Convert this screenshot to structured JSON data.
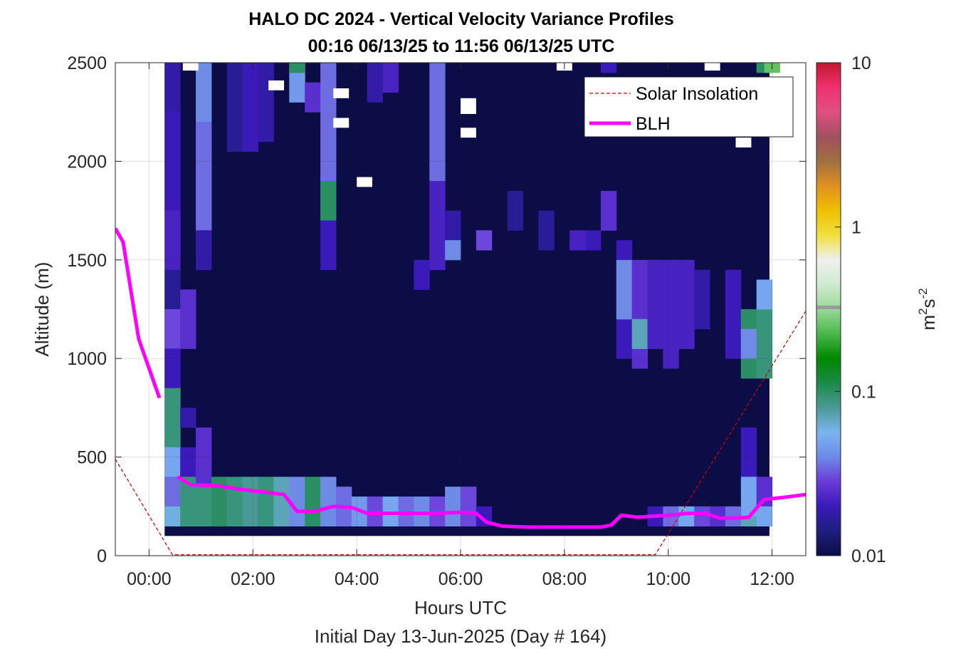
{
  "chart_data": {
    "type": "heatmap",
    "title": "HALO DC 2024 - Vertical Velocity Variance Profiles",
    "subtitle": "00:16 06/13/25 to 11:56 06/13/25  UTC",
    "xlabel": "Hours UTC",
    "xlabel2": "Initial Day 13-Jun-2025 (Day # 164)",
    "ylabel": "Altitude (m)",
    "x_range_hours": [
      -0.65,
      12.65
    ],
    "y_range_m": [
      0,
      2500
    ],
    "x_ticks": [
      "00:00",
      "02:00",
      "04:00",
      "06:00",
      "08:00",
      "10:00",
      "12:00"
    ],
    "x_tick_values_hours": [
      0,
      2,
      4,
      6,
      8,
      10,
      12
    ],
    "y_ticks": [
      "0",
      "500",
      "1000",
      "1500",
      "2000",
      "2500"
    ],
    "y_tick_values": [
      0,
      500,
      1000,
      1500,
      2000,
      2500
    ],
    "grid": true,
    "colorbar": {
      "label": "m²s⁻²",
      "label_base": "m",
      "label_sup1": "2",
      "label_mid": "s",
      "label_sup2": "-2",
      "scale": "log",
      "range": [
        0.01,
        10
      ],
      "ticks": [
        "10",
        "1",
        "0.1",
        "0.01"
      ],
      "tick_values": [
        10,
        1,
        0.1,
        0.01
      ],
      "colors": [
        "#0c0c46",
        "#1e1e80",
        "#3a1ab8",
        "#6a3ad8",
        "#6e8ae6",
        "#7ab4f0",
        "#4a9a98",
        "#1a8a4a",
        "#008800",
        "#4ab84a",
        "#9ad89a",
        "#d0ead0",
        "#f0f0f0",
        "#f0e040",
        "#f0c000",
        "#e09020",
        "#a07040",
        "#a05060",
        "#e05080",
        "#f03070",
        "#c01830"
      ]
    },
    "legend": {
      "placement": "top-right",
      "entries": [
        {
          "name": "Solar Insolation",
          "color": "#cc0000",
          "style": "dashed"
        },
        {
          "name": "BLH",
          "color": "#ff00ff",
          "style": "solid"
        }
      ]
    },
    "heatmap_extent": {
      "x_hours": [
        0.3,
        11.95
      ],
      "y_m": [
        100,
        2500
      ]
    },
    "heatmap_background_value": 0.01,
    "blh_series": {
      "name": "BLH",
      "segment1": {
        "x_hours": [
          -0.65,
          -0.5,
          -0.2,
          0.2
        ],
        "y_m": [
          1660,
          1590,
          1100,
          800
        ]
      },
      "segment2": {
        "x_hours": [
          0.55,
          0.8,
          1.3,
          1.8,
          2.3,
          2.6,
          2.85,
          3.2,
          3.55,
          3.9,
          4.2,
          4.6,
          5.0,
          5.5,
          6.0,
          6.3,
          6.5,
          6.8,
          7.3,
          7.8,
          8.3,
          8.7,
          8.9,
          9.1,
          9.4,
          9.7,
          10.0,
          10.4,
          10.7,
          11.0,
          11.3,
          11.55,
          11.85,
          12.2,
          12.65
        ],
        "y_m": [
          400,
          360,
          355,
          335,
          320,
          310,
          225,
          225,
          250,
          245,
          215,
          215,
          215,
          215,
          220,
          215,
          170,
          150,
          145,
          145,
          145,
          145,
          155,
          205,
          195,
          200,
          205,
          215,
          215,
          190,
          190,
          195,
          285,
          295,
          310
        ]
      }
    },
    "solar_insolation_series": {
      "name": "Solar Insolation",
      "x_hours": [
        -0.65,
        0.45,
        9.75,
        12.65
      ],
      "y_m": [
        490,
        5,
        5,
        1240
      ]
    },
    "cells": [
      {
        "x": 0.3,
        "y": 2250,
        "h": 250,
        "v": 0.018
      },
      {
        "x": 0.3,
        "y": 1750,
        "h": 500,
        "v": 0.02
      },
      {
        "x": 0.3,
        "y": 1450,
        "h": 300,
        "v": 0.022
      },
      {
        "x": 0.3,
        "y": 1250,
        "h": 200,
        "v": 0.016
      },
      {
        "x": 0.3,
        "y": 1050,
        "h": 200,
        "v": 0.03
      },
      {
        "x": 0.3,
        "y": 850,
        "h": 200,
        "v": 0.02
      },
      {
        "x": 0.3,
        "y": 550,
        "h": 300,
        "v": 0.09
      },
      {
        "x": 0.3,
        "y": 400,
        "h": 150,
        "v": 0.05
      },
      {
        "x": 0.3,
        "y": 250,
        "h": 150,
        "v": 0.035
      },
      {
        "x": 0.3,
        "y": 150,
        "h": 100,
        "v": 0.06
      },
      {
        "x": 0.6,
        "y": 1050,
        "h": 300,
        "v": 0.025
      },
      {
        "x": 0.6,
        "y": 650,
        "h": 100,
        "v": 0.018
      },
      {
        "x": 0.6,
        "y": 400,
        "h": 150,
        "v": 0.02
      },
      {
        "x": 0.6,
        "y": 150,
        "h": 250,
        "v": 0.09
      },
      {
        "x": 0.9,
        "y": 2200,
        "h": 300,
        "v": 0.04
      },
      {
        "x": 0.9,
        "y": 1650,
        "h": 550,
        "v": 0.035
      },
      {
        "x": 0.9,
        "y": 1450,
        "h": 200,
        "v": 0.018
      },
      {
        "x": 0.9,
        "y": 350,
        "h": 300,
        "v": 0.025
      },
      {
        "x": 0.9,
        "y": 150,
        "h": 200,
        "v": 0.09
      },
      {
        "x": 1.2,
        "y": 150,
        "h": 250,
        "v": 0.1
      },
      {
        "x": 1.5,
        "y": 150,
        "h": 250,
        "v": 0.09
      },
      {
        "x": 1.8,
        "y": 150,
        "h": 250,
        "v": 0.08
      },
      {
        "x": 2.1,
        "y": 150,
        "h": 250,
        "v": 0.09
      },
      {
        "x": 2.4,
        "y": 150,
        "h": 250,
        "v": 0.07
      },
      {
        "x": 2.7,
        "y": 150,
        "h": 250,
        "v": 0.04
      },
      {
        "x": 3.0,
        "y": 150,
        "h": 250,
        "v": 0.1
      },
      {
        "x": 3.3,
        "y": 150,
        "h": 250,
        "v": 0.04
      },
      {
        "x": 3.6,
        "y": 150,
        "h": 200,
        "v": 0.035
      },
      {
        "x": 3.9,
        "y": 150,
        "h": 150,
        "v": 0.045
      },
      {
        "x": 4.2,
        "y": 150,
        "h": 150,
        "v": 0.03
      },
      {
        "x": 4.5,
        "y": 150,
        "h": 150,
        "v": 0.05
      },
      {
        "x": 4.8,
        "y": 150,
        "h": 150,
        "v": 0.035
      },
      {
        "x": 5.1,
        "y": 150,
        "h": 150,
        "v": 0.04
      },
      {
        "x": 5.4,
        "y": 150,
        "h": 150,
        "v": 0.03
      },
      {
        "x": 5.7,
        "y": 150,
        "h": 200,
        "v": 0.04
      },
      {
        "x": 6.0,
        "y": 150,
        "h": 200,
        "v": 0.03
      },
      {
        "x": 6.3,
        "y": 150,
        "h": 100,
        "v": 0.02
      },
      {
        "x": 1.5,
        "y": 2050,
        "h": 450,
        "v": 0.016
      },
      {
        "x": 1.8,
        "y": 2050,
        "h": 450,
        "v": 0.02
      },
      {
        "x": 2.1,
        "y": 2100,
        "h": 400,
        "v": 0.018
      },
      {
        "x": 2.7,
        "y": 2300,
        "h": 200,
        "v": 0.045
      },
      {
        "x": 2.7,
        "y": 2450,
        "h": 50,
        "v": 0.1
      },
      {
        "x": 3.0,
        "y": 2250,
        "h": 150,
        "v": 0.025
      },
      {
        "x": 3.3,
        "y": 1900,
        "h": 600,
        "v": 0.035
      },
      {
        "x": 3.3,
        "y": 1700,
        "h": 200,
        "v": 0.1
      },
      {
        "x": 3.3,
        "y": 1450,
        "h": 250,
        "v": 0.02
      },
      {
        "x": 4.2,
        "y": 2300,
        "h": 200,
        "v": 0.018
      },
      {
        "x": 4.5,
        "y": 2350,
        "h": 150,
        "v": 0.022
      },
      {
        "x": 5.4,
        "y": 1900,
        "h": 600,
        "v": 0.035
      },
      {
        "x": 5.4,
        "y": 1450,
        "h": 450,
        "v": 0.022
      },
      {
        "x": 5.7,
        "y": 1550,
        "h": 200,
        "v": 0.018
      },
      {
        "x": 5.7,
        "y": 1500,
        "h": 100,
        "v": 0.04
      },
      {
        "x": 6.3,
        "y": 1550,
        "h": 100,
        "v": 0.03
      },
      {
        "x": 6.9,
        "y": 1650,
        "h": 200,
        "v": 0.016
      },
      {
        "x": 7.5,
        "y": 1550,
        "h": 200,
        "v": 0.016
      },
      {
        "x": 8.4,
        "y": 1550,
        "h": 100,
        "v": 0.02
      },
      {
        "x": 8.7,
        "y": 1650,
        "h": 200,
        "v": 0.025
      },
      {
        "x": 8.7,
        "y": 2450,
        "h": 50,
        "v": 0.02
      },
      {
        "x": 8.1,
        "y": 1550,
        "h": 100,
        "v": 0.022
      },
      {
        "x": 5.1,
        "y": 1350,
        "h": 150,
        "v": 0.02
      },
      {
        "x": 9.0,
        "y": 1000,
        "h": 600,
        "v": 0.02
      },
      {
        "x": 9.0,
        "y": 1200,
        "h": 300,
        "v": 0.04
      },
      {
        "x": 9.3,
        "y": 950,
        "h": 550,
        "v": 0.025
      },
      {
        "x": 9.3,
        "y": 1050,
        "h": 150,
        "v": 0.07
      },
      {
        "x": 9.6,
        "y": 1050,
        "h": 450,
        "v": 0.022
      },
      {
        "x": 9.9,
        "y": 950,
        "h": 550,
        "v": 0.022
      },
      {
        "x": 10.2,
        "y": 1050,
        "h": 450,
        "v": 0.022
      },
      {
        "x": 10.5,
        "y": 1150,
        "h": 300,
        "v": 0.018
      },
      {
        "x": 11.1,
        "y": 1000,
        "h": 450,
        "v": 0.02
      },
      {
        "x": 11.4,
        "y": 900,
        "h": 350,
        "v": 0.1
      },
      {
        "x": 11.4,
        "y": 1000,
        "h": 150,
        "v": 0.04
      },
      {
        "x": 11.7,
        "y": 900,
        "h": 350,
        "v": 0.09
      },
      {
        "x": 11.7,
        "y": 1250,
        "h": 150,
        "v": 0.05
      },
      {
        "x": 11.4,
        "y": 350,
        "h": 300,
        "v": 0.02
      },
      {
        "x": 11.4,
        "y": 200,
        "h": 200,
        "v": 0.05
      },
      {
        "x": 11.7,
        "y": 250,
        "h": 150,
        "v": 0.025
      },
      {
        "x": 11.7,
        "y": 2450,
        "h": 50,
        "v": 0.1
      },
      {
        "x": 11.85,
        "y": 2450,
        "h": 50,
        "v": 0.25
      },
      {
        "x": 9.6,
        "y": 150,
        "h": 100,
        "v": 0.02
      },
      {
        "x": 9.9,
        "y": 150,
        "h": 100,
        "v": 0.035
      },
      {
        "x": 10.2,
        "y": 150,
        "h": 100,
        "v": 0.05
      },
      {
        "x": 10.5,
        "y": 150,
        "h": 100,
        "v": 0.03
      },
      {
        "x": 10.8,
        "y": 150,
        "h": 100,
        "v": 0.025
      },
      {
        "x": 11.1,
        "y": 150,
        "h": 100,
        "v": 0.035
      },
      {
        "x": 11.4,
        "y": 150,
        "h": 50,
        "v": 0.07
      },
      {
        "x": 11.7,
        "y": 150,
        "h": 100,
        "v": 0.05
      }
    ],
    "missing_cells": [
      {
        "x": 0.65,
        "y": 2460,
        "h": 40
      },
      {
        "x": 2.3,
        "y": 2360,
        "h": 50
      },
      {
        "x": 3.55,
        "y": 2320,
        "h": 50
      },
      {
        "x": 3.55,
        "y": 2170,
        "h": 50
      },
      {
        "x": 4.0,
        "y": 1870,
        "h": 50
      },
      {
        "x": 6.0,
        "y": 2240,
        "h": 80
      },
      {
        "x": 6.0,
        "y": 2120,
        "h": 50
      },
      {
        "x": 7.85,
        "y": 2460,
        "h": 40
      },
      {
        "x": 10.7,
        "y": 2460,
        "h": 40
      },
      {
        "x": 11.3,
        "y": 2070,
        "h": 50
      }
    ]
  }
}
